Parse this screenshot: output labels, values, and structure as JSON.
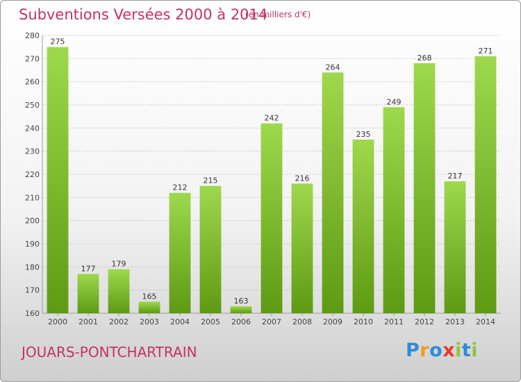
{
  "chart_data": {
    "type": "bar",
    "title": "Subventions Versées 2000 à 2014",
    "unit_note": "(en milliers d'€)",
    "categories": [
      "2000",
      "2001",
      "2002",
      "2003",
      "2004",
      "2005",
      "2006",
      "2007",
      "2008",
      "2009",
      "2010",
      "2011",
      "2012",
      "2013",
      "2014"
    ],
    "values": [
      275,
      177,
      179,
      165,
      212,
      215,
      163,
      242,
      216,
      264,
      235,
      249,
      268,
      217,
      271
    ],
    "ylim": [
      160,
      280
    ],
    "yticks": [
      160,
      170,
      180,
      190,
      200,
      210,
      220,
      230,
      240,
      250,
      260,
      270,
      280
    ],
    "grid": true,
    "bar_color_top": "#9ed84d",
    "bar_color_bottom": "#5e9a12",
    "title_color": "#c3335f"
  },
  "commune": "JOUARS-PONTCHARTRAIN",
  "logo": {
    "letters": [
      "P",
      "r",
      "o",
      "x",
      "i",
      "t",
      "i"
    ],
    "colors": [
      "#2e8bd6",
      "#f39a1e",
      "#2e8bd6",
      "#e83a2f",
      "#8cc63f",
      "#2e8bd6",
      "#8cc63f"
    ]
  }
}
